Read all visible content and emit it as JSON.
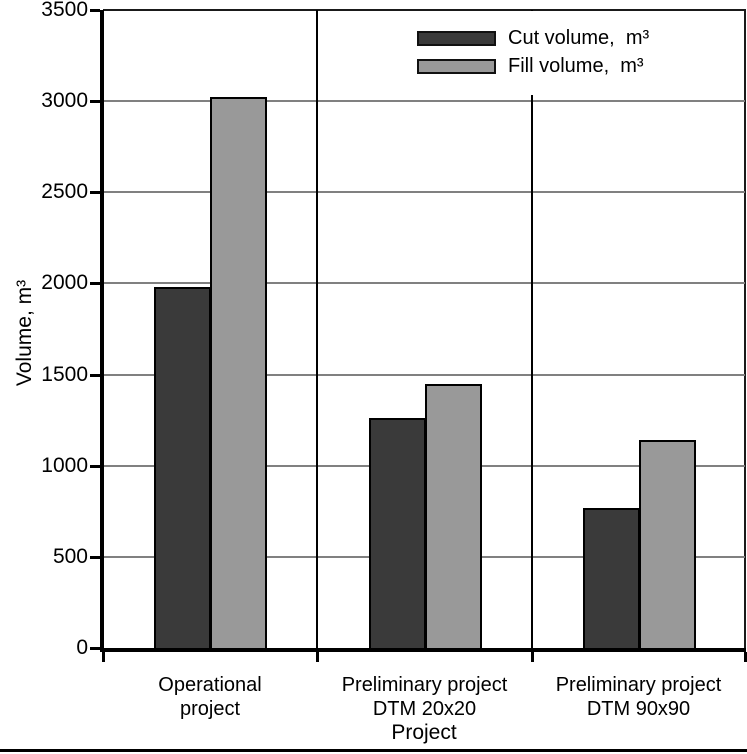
{
  "figure": {
    "background": "#ffffff",
    "frame_color": "#1a1a1a",
    "gridline_color": "#808080",
    "axis_color": "#000000"
  },
  "chart_data": {
    "type": "bar",
    "title": "",
    "xlabel": "Project",
    "ylabel": "Volume, m³",
    "categories": [
      {
        "line1": "Operational",
        "line2": "project"
      },
      {
        "line1": "Preliminary project",
        "line2": "DTM 20x20"
      },
      {
        "line1": "Preliminary project",
        "line2": "DTM 90x90"
      }
    ],
    "series": [
      {
        "name": "Cut volume,  m³",
        "key": "cut",
        "color": "#3a3a3a",
        "values": [
          1980,
          1260,
          770
        ]
      },
      {
        "name": "Fill volume,  m³",
        "key": "fill",
        "color": "#999999",
        "values": [
          3020,
          1450,
          1140
        ]
      }
    ],
    "ylim": [
      0,
      3500
    ],
    "yticks": [
      0,
      500,
      1000,
      1500,
      2000,
      2500,
      3000,
      3500
    ],
    "ytick_labels": [
      "0",
      "500",
      "1000",
      "1500",
      "2000",
      "2500",
      "3000",
      "3500"
    ],
    "grid": "horizontal lines every 500, vertical black separators between category sections",
    "legend_position": "top-right inside plot, borderless white box"
  }
}
